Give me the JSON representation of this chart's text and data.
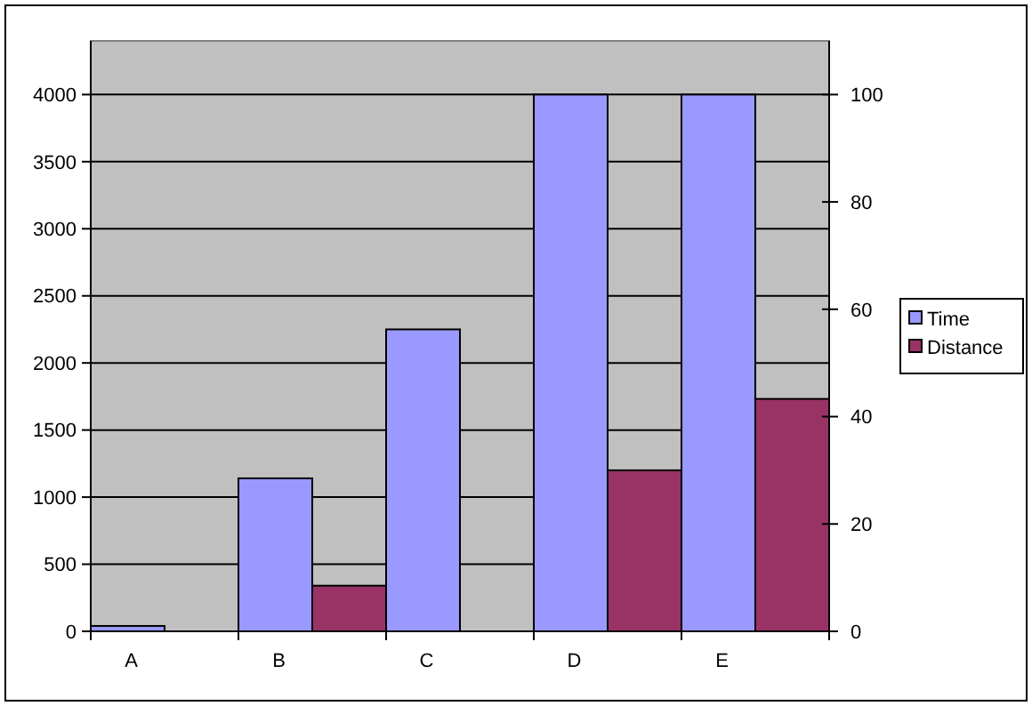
{
  "chart_data": {
    "type": "bar",
    "categories": [
      "A",
      "B",
      "C",
      "D",
      "E"
    ],
    "series": [
      {
        "name": "Time",
        "color": "#9999ff",
        "values": [
          40,
          1140,
          2250,
          4000,
          4000
        ]
      },
      {
        "name": "Distance",
        "color": "#993366",
        "values": [
          0,
          8.5,
          0,
          30,
          43.3
        ],
        "axis": "y2"
      }
    ],
    "ylim": [
      0,
      4400
    ],
    "yticks": [
      0,
      500,
      1000,
      1500,
      2000,
      2500,
      3000,
      3500,
      4000
    ],
    "y2lim": [
      0,
      110
    ],
    "y2ticks": [
      0,
      20,
      40,
      60,
      80,
      100
    ],
    "grid": "y",
    "legend": "right"
  }
}
